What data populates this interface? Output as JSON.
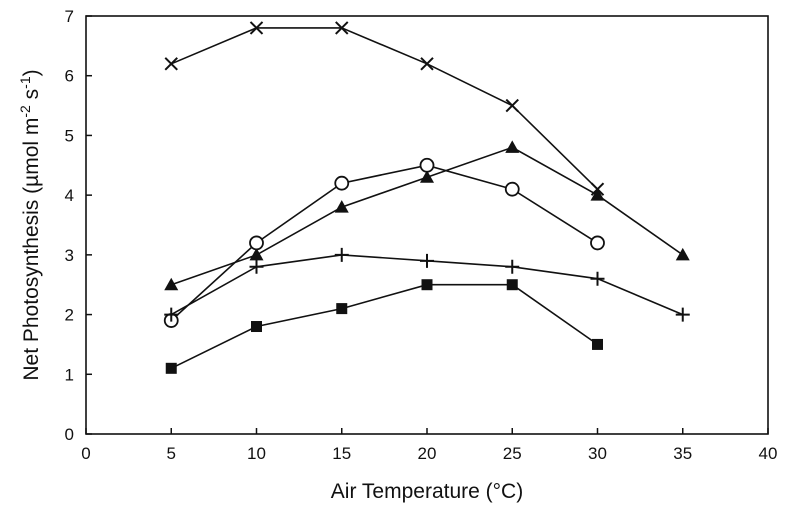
{
  "chart_data": {
    "type": "line",
    "title": "",
    "xlabel": "Air Temperature (°C)",
    "ylabel": "Net Photosynthesis (µmol m-2 s-1)",
    "ylabel_parts": {
      "base": "Net Photosynthesis (µmol m",
      "exp1": "-2",
      "mid": " s",
      "exp2": "-1",
      "end": ")"
    },
    "xlim": [
      0,
      40
    ],
    "ylim": [
      0,
      7
    ],
    "xticks": [
      0,
      5,
      10,
      15,
      20,
      25,
      30,
      35,
      40
    ],
    "yticks": [
      0,
      1,
      2,
      3,
      4,
      5,
      6,
      7
    ],
    "grid": false,
    "legend": "none",
    "series": [
      {
        "marker": "x",
        "x": [
          5,
          10,
          15,
          20,
          25,
          30
        ],
        "y": [
          6.2,
          6.8,
          6.8,
          6.2,
          5.5,
          4.1
        ]
      },
      {
        "marker": "triangle",
        "x": [
          5,
          10,
          15,
          20,
          25,
          30,
          35
        ],
        "y": [
          2.5,
          3.0,
          3.8,
          4.3,
          4.8,
          4.0,
          3.0
        ]
      },
      {
        "marker": "circle",
        "x": [
          5,
          10,
          15,
          20,
          25,
          30
        ],
        "y": [
          1.9,
          3.2,
          4.2,
          4.5,
          4.1,
          3.2
        ]
      },
      {
        "marker": "plus",
        "x": [
          5,
          10,
          15,
          20,
          25,
          30,
          35
        ],
        "y": [
          2.0,
          2.8,
          3.0,
          2.9,
          2.8,
          2.6,
          2.0
        ]
      },
      {
        "marker": "square",
        "x": [
          5,
          10,
          15,
          20,
          25,
          30
        ],
        "y": [
          1.1,
          1.8,
          2.1,
          2.5,
          2.5,
          1.5
        ]
      }
    ]
  }
}
